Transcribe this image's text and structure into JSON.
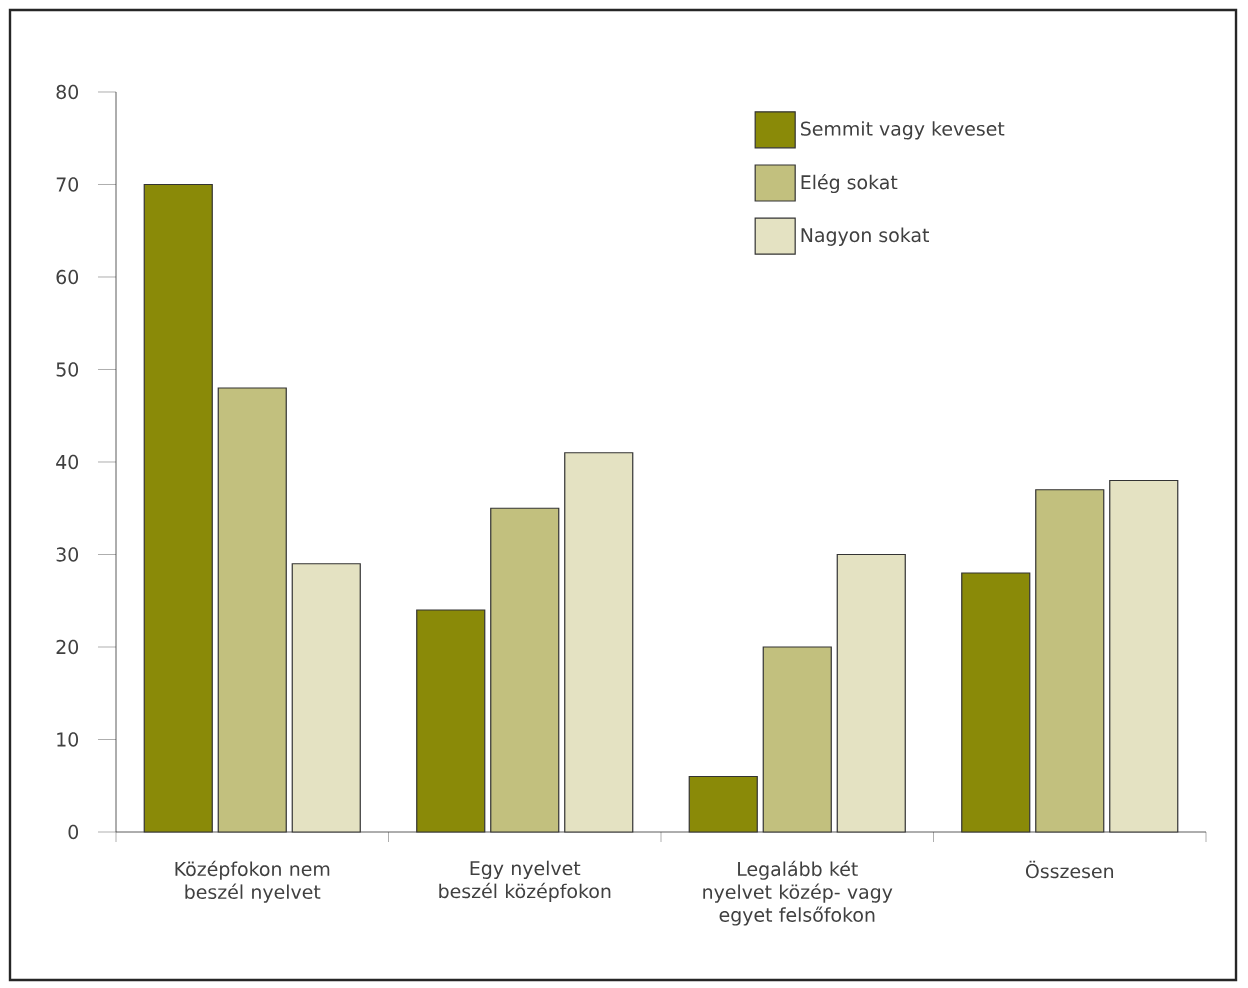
{
  "chart_data": {
    "type": "bar",
    "categories": [
      "Középfokon nem beszél nyelvet",
      "Egy nyelvet beszél középfokon",
      "Legalább két nyelvet közép- vagy egyet felsőfokon",
      "Összesen"
    ],
    "series": [
      {
        "name": "Semmit vagy keveset",
        "color": "#8a8a08",
        "values": [
          70,
          24,
          6,
          28
        ]
      },
      {
        "name": "Elég sokat",
        "color": "#c2c07e",
        "values": [
          48,
          35,
          20,
          37
        ]
      },
      {
        "name": "Nagyon sokat",
        "color": "#e4e2c2",
        "values": [
          29,
          41,
          30,
          38
        ]
      }
    ],
    "ylim": [
      0,
      80
    ],
    "yticks": [
      0,
      10,
      20,
      30,
      40,
      50,
      60,
      70,
      80
    ],
    "grid": false,
    "legend": "top right"
  }
}
